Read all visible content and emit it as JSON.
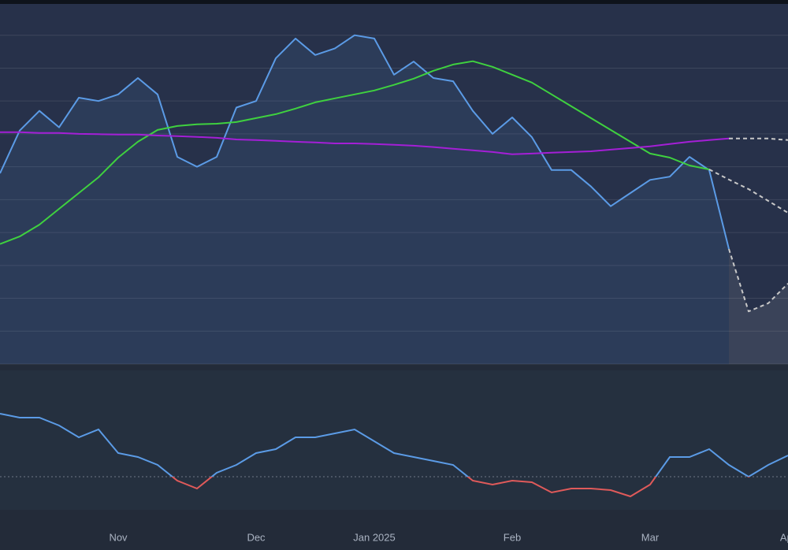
{
  "chart_data": [
    {
      "type": "line",
      "categories": [
        null,
        null,
        null,
        null,
        null,
        null,
        "Nov",
        null,
        null,
        null,
        null,
        null,
        null,
        "Dec",
        null,
        null,
        null,
        null,
        null,
        "Jan 2025",
        null,
        null,
        null,
        null,
        null,
        null,
        "Feb",
        null,
        null,
        null,
        null,
        null,
        null,
        "Mar",
        null,
        null,
        null,
        null,
        null,
        null,
        "Apr"
      ],
      "ylim": [
        0,
        110
      ],
      "yticks": [
        0,
        10,
        20,
        30,
        40,
        50,
        60,
        70,
        80,
        90,
        100
      ],
      "grid": true,
      "series": [
        {
          "color": "#5b9be6",
          "fill": true,
          "values": [
            58,
            71,
            77,
            72,
            81,
            80,
            82,
            87,
            82,
            63,
            60,
            63,
            78,
            80,
            93,
            99,
            94,
            96,
            100,
            99,
            88,
            92,
            87,
            86,
            77,
            70,
            75,
            69,
            59,
            59,
            54,
            48,
            52,
            56,
            57,
            63,
            59,
            35,
            null,
            null,
            null
          ]
        },
        {
          "color": "#3fd13f",
          "values": [
            36.5,
            38.8,
            42.4,
            47.2,
            52,
            56.8,
            62.8,
            67.6,
            71.2,
            72.4,
            72.9,
            73.1,
            73.6,
            74.8,
            76,
            77.7,
            79.6,
            80.8,
            82,
            83.2,
            84.9,
            86.8,
            89.2,
            91.1,
            92.1,
            90.4,
            88,
            85.6,
            82,
            78.4,
            74.8,
            71.2,
            67.6,
            64,
            62.8,
            60.4,
            59.2,
            null,
            null,
            null,
            null
          ]
        },
        {
          "color": "#a41fd6",
          "values": [
            70.5,
            70.5,
            70.3,
            70.3,
            70,
            69.9,
            69.8,
            69.8,
            69.5,
            69.3,
            69.1,
            68.8,
            68.3,
            68.1,
            67.9,
            67.6,
            67.4,
            67.1,
            67.1,
            66.9,
            66.7,
            66.4,
            66,
            65.5,
            65,
            64.5,
            63.8,
            64,
            64.3,
            64.5,
            64.7,
            65.2,
            65.7,
            66.2,
            66.9,
            67.6,
            68.1,
            68.6,
            null,
            null,
            null
          ]
        },
        {
          "color": "#c8c8c8",
          "dash": true,
          "fill": true,
          "values": [
            null,
            null,
            null,
            null,
            null,
            null,
            null,
            null,
            null,
            null,
            null,
            null,
            null,
            null,
            null,
            null,
            null,
            null,
            null,
            null,
            null,
            null,
            null,
            null,
            null,
            null,
            null,
            null,
            null,
            null,
            null,
            null,
            null,
            null,
            null,
            null,
            null,
            35,
            16,
            18.5,
            24.5
          ]
        },
        {
          "color": "#c8c8c8",
          "dash": true,
          "values": [
            null,
            null,
            null,
            null,
            null,
            null,
            null,
            null,
            null,
            null,
            null,
            null,
            null,
            null,
            null,
            null,
            null,
            null,
            null,
            null,
            null,
            null,
            null,
            null,
            null,
            null,
            null,
            null,
            null,
            null,
            null,
            null,
            null,
            null,
            null,
            null,
            59.2,
            56.1,
            53.2,
            49.6,
            46
          ]
        },
        {
          "color": "#c8c8c8",
          "dash": true,
          "values": [
            null,
            null,
            null,
            null,
            null,
            null,
            null,
            null,
            null,
            null,
            null,
            null,
            null,
            null,
            null,
            null,
            null,
            null,
            null,
            null,
            null,
            null,
            null,
            null,
            null,
            null,
            null,
            null,
            null,
            null,
            null,
            null,
            null,
            null,
            null,
            null,
            null,
            68.6,
            68.6,
            68.6,
            68.1
          ]
        }
      ]
    },
    {
      "type": "line",
      "color": "#5b9be6",
      "negative_color": "#e05a5a",
      "ylim": [
        -4.2,
        13.5
      ],
      "yticks": [
        0
      ],
      "values": [
        8,
        7.5,
        7.5,
        6.5,
        5,
        6,
        3,
        2.5,
        1.5,
        -0.5,
        -1.5,
        0.5,
        1.5,
        3,
        3.5,
        5,
        5,
        5.5,
        6,
        4.5,
        3,
        2.5,
        2,
        1.5,
        -0.5,
        -1,
        -0.5,
        -0.7,
        -2,
        -1.5,
        -1.5,
        -1.7,
        -2.5,
        -1,
        2.5,
        2.5,
        3.5,
        1.5,
        0,
        1.5,
        2.7
      ]
    }
  ]
}
